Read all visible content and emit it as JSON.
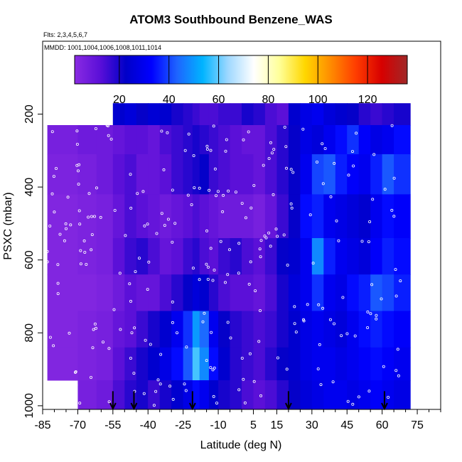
{
  "chart_data": {
    "type": "heatmap",
    "title": "ATOM3 Southbound Benzene_WAS",
    "annotations": {
      "flights": "Flts: 2,3,4,5,6,7",
      "dates": "MMDD: 1001,1004,1006,1008,1011,1014"
    },
    "xlabel": "Latitude (deg N)",
    "ylabel": "PSXC (mbar)",
    "xlim": [
      -85,
      85
    ],
    "ylim": [
      1010,
      0
    ],
    "x_ticks": [
      -85,
      -70,
      -55,
      -40,
      -25,
      -10,
      5,
      15,
      30,
      45,
      60,
      75
    ],
    "y_ticks": [
      200,
      400,
      600,
      800,
      1000
    ],
    "colorbar": {
      "range": [
        2,
        136
      ],
      "ticks": [
        20,
        40,
        60,
        80,
        100,
        120
      ],
      "colors": [
        "#8a2be2",
        "#5a0fd8",
        "#0000c8",
        "#0000ff",
        "#1e64ff",
        "#00b4ff",
        "#9fd8ff",
        "#ffffff",
        "#ffff99",
        "#ffd700",
        "#ff8c00",
        "#ff3c00",
        "#d70000",
        "#a02828"
      ]
    },
    "profile_latitudes": [
      -55,
      -46,
      -21,
      20,
      61
    ],
    "field": {
      "lat_edges": [
        -83,
        -70,
        -62,
        -55,
        -50,
        -45,
        -40,
        -35,
        -30,
        -25,
        -21,
        -18,
        -14,
        -10,
        -5,
        0,
        5,
        10,
        15,
        20,
        25,
        30,
        35,
        40,
        45,
        50,
        55,
        60,
        65,
        72
      ],
      "bands": [
        {
          "p": [
            170,
            230
          ],
          "values": [
            null,
            null,
            null,
            24,
            26,
            22,
            25,
            24,
            20,
            18,
            16,
            14,
            14,
            16,
            16,
            20,
            18,
            14,
            12,
            24,
            28,
            30,
            26,
            24,
            22,
            18,
            16,
            18,
            20
          ]
        },
        {
          "p": [
            230,
            310
          ],
          "values": [
            6,
            8,
            8,
            10,
            12,
            12,
            10,
            14,
            16,
            18,
            20,
            18,
            16,
            14,
            12,
            10,
            10,
            14,
            18,
            22,
            28,
            26,
            30,
            34,
            38,
            32,
            28,
            30,
            34
          ]
        },
        {
          "p": [
            310,
            420
          ],
          "values": [
            5,
            6,
            8,
            12,
            14,
            10,
            10,
            12,
            16,
            18,
            20,
            22,
            16,
            14,
            12,
            12,
            10,
            14,
            18,
            22,
            30,
            40,
            42,
            36,
            32,
            30,
            36,
            42,
            38
          ]
        },
        {
          "p": [
            420,
            540
          ],
          "values": [
            4,
            5,
            6,
            10,
            14,
            12,
            10,
            8,
            10,
            12,
            14,
            12,
            10,
            8,
            8,
            8,
            6,
            10,
            16,
            22,
            34,
            36,
            30,
            28,
            26,
            24,
            30,
            34,
            32
          ]
        },
        {
          "p": [
            540,
            640
          ],
          "values": [
            4,
            5,
            6,
            12,
            16,
            18,
            14,
            10,
            12,
            16,
            18,
            14,
            12,
            16,
            18,
            14,
            12,
            16,
            22,
            24,
            30,
            48,
            36,
            30,
            28,
            26,
            32,
            36,
            34
          ]
        },
        {
          "p": [
            640,
            740
          ],
          "values": [
            4,
            4,
            5,
            8,
            12,
            10,
            10,
            14,
            18,
            22,
            26,
            24,
            18,
            14,
            12,
            12,
            10,
            14,
            20,
            26,
            30,
            38,
            30,
            28,
            34,
            36,
            42,
            40,
            36
          ]
        },
        {
          "p": [
            740,
            840
          ],
          "values": [
            4,
            5,
            6,
            10,
            12,
            16,
            20,
            24,
            30,
            38,
            50,
            44,
            30,
            22,
            18,
            16,
            14,
            16,
            20,
            24,
            28,
            30,
            28,
            26,
            30,
            34,
            36,
            34,
            32
          ]
        },
        {
          "p": [
            840,
            930
          ],
          "values": [
            4,
            5,
            6,
            12,
            16,
            20,
            24,
            28,
            34,
            42,
            58,
            48,
            34,
            24,
            18,
            16,
            14,
            18,
            22,
            24,
            28,
            30,
            30,
            28,
            30,
            32,
            34,
            32,
            30
          ]
        },
        {
          "p": [
            930,
            1010
          ],
          "values": [
            null,
            6,
            8,
            14,
            18,
            20,
            16,
            20,
            24,
            28,
            34,
            30,
            24,
            20,
            18,
            14,
            12,
            14,
            18,
            22,
            26,
            28,
            30,
            30,
            28,
            30,
            32,
            30,
            28
          ]
        }
      ]
    }
  }
}
